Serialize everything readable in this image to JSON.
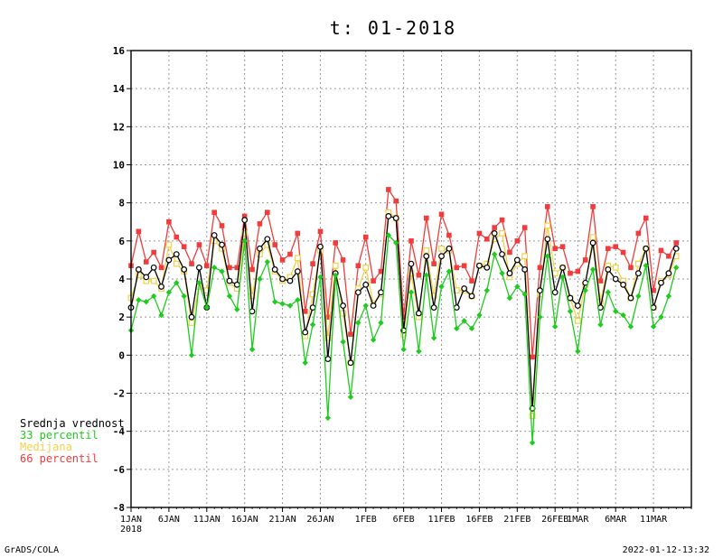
{
  "footer": {
    "left": "GrADS/COLA",
    "right": "2022-01-12-13:32"
  },
  "chart_data": {
    "type": "line",
    "title": "t: 01-2018",
    "xlabel": "",
    "ylabel": "",
    "ylim": [
      -8,
      16
    ],
    "y_ticks": [
      -8,
      -6,
      -4,
      -2,
      0,
      2,
      4,
      6,
      8,
      10,
      12,
      14,
      16
    ],
    "x_range": [
      1,
      75
    ],
    "x_ticks": [
      {
        "day": 1,
        "label": "1JAN",
        "sublabel": "2018"
      },
      {
        "day": 6,
        "label": "6JAN"
      },
      {
        "day": 11,
        "label": "11JAN"
      },
      {
        "day": 16,
        "label": "16JAN"
      },
      {
        "day": 21,
        "label": "21JAN"
      },
      {
        "day": 26,
        "label": "26JAN"
      },
      {
        "day": 32,
        "label": "1FEB"
      },
      {
        "day": 37,
        "label": "6FEB"
      },
      {
        "day": 42,
        "label": "11FEB"
      },
      {
        "day": 47,
        "label": "16FEB"
      },
      {
        "day": 52,
        "label": "21FEB"
      },
      {
        "day": 57,
        "label": "26FEB"
      },
      {
        "day": 60,
        "label": "1MAR"
      },
      {
        "day": 65,
        "label": "6MAR"
      },
      {
        "day": 70,
        "label": "11MAR"
      }
    ],
    "grid": true,
    "legend_position": "left",
    "series": [
      {
        "name": "66 percentil",
        "color": "#f03c3c",
        "marker": "filled-square",
        "values": [
          4.7,
          6.5,
          4.9,
          5.4,
          4.6,
          7.0,
          6.2,
          5.7,
          4.8,
          5.8,
          4.7,
          7.5,
          6.8,
          4.6,
          4.6,
          7.3,
          4.5,
          6.9,
          7.5,
          5.8,
          5.0,
          5.3,
          6.4,
          2.3,
          4.8,
          6.5,
          2.0,
          5.9,
          5.0,
          1.1,
          4.7,
          6.2,
          3.9,
          4.4,
          8.7,
          8.1,
          2.0,
          6.0,
          4.2,
          7.2,
          4.8,
          7.4,
          6.3,
          4.6,
          4.7,
          3.9,
          6.4,
          6.1,
          6.7,
          7.1,
          5.4,
          6.0,
          6.7,
          -0.1,
          4.6,
          7.8,
          5.6,
          5.7,
          4.3,
          4.4,
          5.0,
          7.8,
          3.9,
          5.6,
          5.7,
          5.4,
          4.6,
          6.4,
          7.2,
          3.4,
          5.5,
          5.2,
          5.9
        ]
      },
      {
        "name": "Medijana",
        "color": "#f0d24a",
        "marker": "open-square",
        "values": [
          3.0,
          4.2,
          3.9,
          3.9,
          3.5,
          5.8,
          4.8,
          4.4,
          1.7,
          3.6,
          3.4,
          6.0,
          5.6,
          3.8,
          3.5,
          6.4,
          3.1,
          5.3,
          5.8,
          4.4,
          3.9,
          4.1,
          5.1,
          1.0,
          3.2,
          5.5,
          0.9,
          4.7,
          2.2,
          -0.4,
          3.5,
          4.6,
          2.7,
          3.2,
          7.5,
          7.2,
          1.1,
          4.3,
          2.0,
          5.5,
          3.1,
          5.6,
          5.5,
          3.4,
          3.4,
          3.1,
          4.7,
          4.8,
          6.1,
          6.4,
          4.1,
          4.8,
          5.2,
          -3.2,
          3.2,
          6.8,
          4.3,
          4.6,
          3.0,
          1.8,
          3.7,
          6.2,
          2.8,
          4.7,
          4.6,
          3.9,
          3.0,
          4.8,
          5.6,
          2.5,
          3.9,
          4.2,
          5.2
        ]
      },
      {
        "name": "Srednja vrednost",
        "color": "#000000",
        "marker": "open-circle",
        "values": [
          2.5,
          4.5,
          4.1,
          4.6,
          3.6,
          5.0,
          5.3,
          4.5,
          2.0,
          4.6,
          2.5,
          6.3,
          5.8,
          3.9,
          3.7,
          7.1,
          2.3,
          5.6,
          6.1,
          4.5,
          4.0,
          3.9,
          4.4,
          1.2,
          2.5,
          5.7,
          -0.2,
          4.3,
          2.6,
          -0.4,
          3.3,
          3.7,
          2.6,
          3.3,
          7.3,
          7.2,
          1.3,
          4.8,
          2.2,
          5.2,
          2.5,
          5.2,
          5.6,
          2.5,
          3.5,
          3.1,
          4.7,
          4.6,
          6.4,
          5.3,
          4.3,
          5.0,
          4.5,
          -2.8,
          3.4,
          6.1,
          3.3,
          4.6,
          3.0,
          2.6,
          3.8,
          5.9,
          2.5,
          4.5,
          4.0,
          3.7,
          3.0,
          4.3,
          5.6,
          2.5,
          3.8,
          4.3,
          5.6
        ]
      },
      {
        "name": "33 percentil",
        "color": "#1ecc1e",
        "marker": "filled-diamond",
        "values": [
          1.3,
          2.9,
          2.8,
          3.1,
          2.1,
          3.3,
          3.8,
          3.1,
          0.0,
          3.8,
          2.5,
          4.6,
          4.4,
          3.1,
          2.4,
          6.0,
          0.3,
          4.0,
          4.9,
          2.8,
          2.7,
          2.6,
          2.9,
          -0.4,
          1.6,
          4.1,
          -3.3,
          4.2,
          0.7,
          -2.2,
          1.7,
          2.6,
          0.8,
          1.7,
          6.3,
          5.9,
          0.3,
          3.3,
          0.2,
          4.2,
          0.9,
          3.6,
          4.4,
          1.4,
          1.8,
          1.4,
          2.1,
          3.4,
          5.3,
          4.3,
          3.0,
          3.6,
          3.2,
          -4.6,
          2.0,
          5.2,
          1.5,
          4.1,
          2.3,
          0.2,
          3.4,
          4.5,
          1.6,
          3.3,
          2.3,
          2.1,
          1.5,
          3.1,
          4.7,
          1.5,
          2.0,
          3.1,
          4.6
        ]
      }
    ],
    "legend": [
      "Srednja vrednost",
      "33 percentil",
      "Medijana",
      "66 percentil"
    ]
  }
}
